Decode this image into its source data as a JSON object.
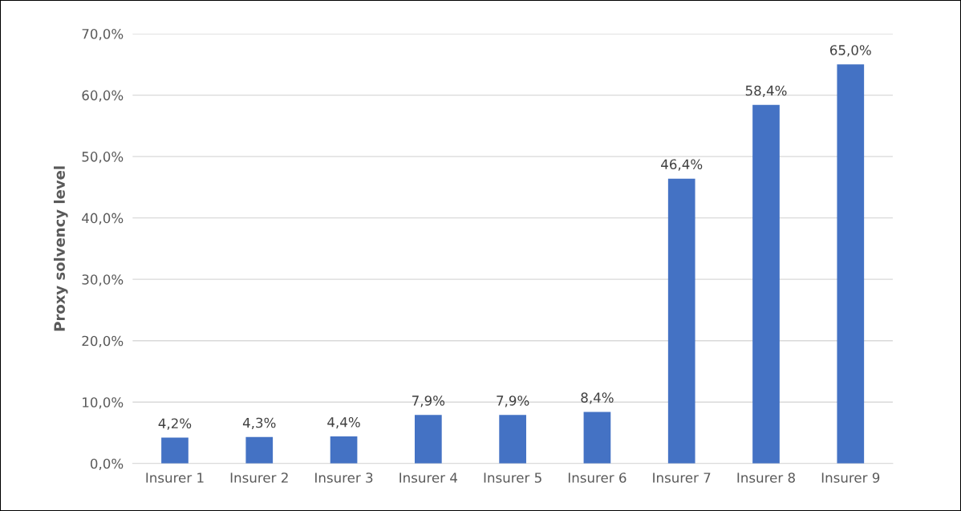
{
  "chart_data": {
    "type": "bar",
    "ylabel": "Proxy solvency level",
    "categories": [
      "Insurer 1",
      "Insurer 2",
      "Insurer 3",
      "Insurer 4",
      "Insurer 5",
      "Insurer 6",
      "Insurer 7",
      "Insurer 8",
      "Insurer 9"
    ],
    "values": [
      4.2,
      4.3,
      4.4,
      7.9,
      7.9,
      8.4,
      46.4,
      58.4,
      65.0
    ],
    "value_labels": [
      "4,2%",
      "4,3%",
      "4,4%",
      "7,9%",
      "7,9%",
      "8,4%",
      "46,4%",
      "58,4%",
      "65,0%"
    ],
    "color": "#4472c4",
    "ylim": [
      0,
      70
    ],
    "yticks": [
      {
        "value": 0,
        "label": "0,0%"
      },
      {
        "value": 10,
        "label": "10,0%"
      },
      {
        "value": 20,
        "label": "20,0%"
      },
      {
        "value": 30,
        "label": "30,0%"
      },
      {
        "value": 40,
        "label": "40,0%"
      },
      {
        "value": 50,
        "label": "50,0%"
      },
      {
        "value": 60,
        "label": "60,0%"
      },
      {
        "value": 70,
        "label": "70,0%"
      }
    ],
    "grid": "y",
    "legend": false
  }
}
